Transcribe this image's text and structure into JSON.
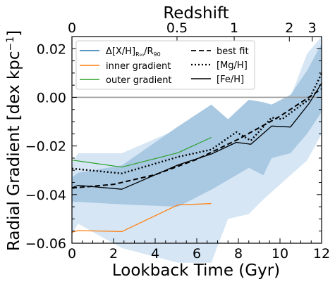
{
  "chart_data": {
    "type": "line",
    "title": "",
    "xlabel": "Lookback Time (Gyr)",
    "ylabel": "Radial Gradient [dex kpc",
    "ylabel_sup": "−1",
    "ylabel_close": "]",
    "top_axis_label": "Redshift",
    "xlim": [
      0,
      12
    ],
    "ylim": [
      -0.06,
      0.025
    ],
    "x_ticks": [
      0,
      2,
      4,
      6,
      8,
      10,
      12
    ],
    "y_ticks": [
      -0.06,
      -0.04,
      -0.02,
      0.0,
      0.02
    ],
    "x_tick_labels": [
      "0",
      "2",
      "4",
      "6",
      "8",
      "10",
      "12"
    ],
    "y_tick_labels": [
      "−0.06",
      "−0.04",
      "−0.02",
      "0.00",
      "0.02"
    ],
    "top_ticks": [
      {
        "label": "0",
        "time": 0.0
      },
      {
        "label": "0.5",
        "time": 5.05
      },
      {
        "label": "1",
        "time": 7.8
      },
      {
        "label": "2",
        "time": 10.45
      },
      {
        "label": "3",
        "time": 11.55
      }
    ],
    "zero_line": 0.0,
    "legend": {
      "position": "top-left",
      "col1": [
        {
          "key": "ratio",
          "label_pre": "Δ[X/H]",
          "label_sub": "R₉₀",
          "label_mid": "/R",
          "label_sub2": "90",
          "color": "#1f77b4",
          "style": "solid"
        },
        {
          "key": "inner",
          "label": "inner gradient",
          "color": "#ff7f0e",
          "style": "solid"
        },
        {
          "key": "outer",
          "label": "outer gradient",
          "color": "#2ca02c",
          "style": "solid"
        }
      ],
      "col2": [
        {
          "key": "best",
          "label": "best fit",
          "color": "#000000",
          "style": "dashed"
        },
        {
          "key": "mgh",
          "label": "[Mg/H]",
          "color": "#000000",
          "style": "dotted"
        },
        {
          "key": "feh",
          "label": "[Fe/H]",
          "color": "#000000",
          "style": "solid"
        }
      ]
    },
    "bands": [
      {
        "name": "outer band",
        "color": "#d6e6f4",
        "x": [
          0.0,
          0.3,
          2.4,
          5.1,
          6.7,
          7.5,
          8.5,
          9.2,
          10.5,
          11.3,
          12.0
        ],
        "upper": [
          -0.027,
          -0.023,
          -0.023,
          -0.013,
          -0.006,
          -0.012,
          -0.004,
          -0.005,
          0.0,
          0.018,
          0.025
        ],
        "lower": [
          -0.056,
          -0.052,
          -0.062,
          -0.068,
          -0.068,
          -0.05,
          -0.048,
          -0.042,
          -0.032,
          -0.026,
          -0.015
        ]
      },
      {
        "name": "inner band",
        "color": "#a9c9e3",
        "x": [
          0.0,
          0.3,
          2.4,
          5.1,
          6.7,
          7.5,
          8.5,
          9.2,
          9.6,
          10.5,
          11.3,
          12.0
        ],
        "upper": [
          -0.033,
          -0.031,
          -0.028,
          -0.012,
          -0.003,
          -0.009,
          -0.001,
          -0.002,
          -0.003,
          0.001,
          0.011,
          0.022
        ],
        "lower": [
          -0.043,
          -0.043,
          -0.044,
          -0.045,
          -0.038,
          -0.034,
          -0.029,
          -0.032,
          -0.025,
          -0.023,
          -0.015,
          -0.006
        ]
      }
    ],
    "series": [
      {
        "name": "inner gradient",
        "color": "#ff7f0e",
        "style": "solid",
        "width": 1.2,
        "x": [
          0.0,
          0.3,
          2.4,
          5.1,
          6.7
        ],
        "values": [
          -0.0555,
          -0.0548,
          -0.0552,
          -0.0442,
          -0.0437
        ]
      },
      {
        "name": "outer gradient",
        "color": "#2ca02c",
        "style": "solid",
        "width": 1.2,
        "x": [
          0.0,
          2.4,
          5.1,
          6.7
        ],
        "values": [
          -0.0258,
          -0.0287,
          -0.0228,
          -0.0165
        ]
      },
      {
        "name": "best fit",
        "color": "#000000",
        "style": "dashed",
        "width": 2.0,
        "x": [
          0.0,
          2.0,
          4.0,
          6.0,
          8.0,
          10.0,
          12.0
        ],
        "values": [
          -0.0373,
          -0.0358,
          -0.0318,
          -0.0255,
          -0.0172,
          -0.0078,
          0.0035
        ]
      },
      {
        "name": "[Mg/H]",
        "color": "#000000",
        "style": "dotted",
        "width": 2.4,
        "x": [
          0.0,
          2.4,
          5.1,
          6.7,
          7.9,
          8.6,
          9.6,
          10.1,
          11.4,
          12.0
        ],
        "values": [
          -0.0293,
          -0.0313,
          -0.0245,
          -0.0215,
          -0.0143,
          -0.0178,
          -0.0083,
          -0.009,
          -0.0008,
          0.0098
        ]
      },
      {
        "name": "[Fe/H]",
        "color": "#000000",
        "style": "solid",
        "width": 1.3,
        "x": [
          0.0,
          0.3,
          2.4,
          5.1,
          6.7,
          7.9,
          8.6,
          9.6,
          10.5,
          11.4,
          12.0
        ],
        "values": [
          -0.0372,
          -0.0362,
          -0.0378,
          -0.0278,
          -0.0233,
          -0.0185,
          -0.0193,
          -0.0118,
          -0.0122,
          -0.0025,
          0.0058
        ]
      }
    ]
  }
}
